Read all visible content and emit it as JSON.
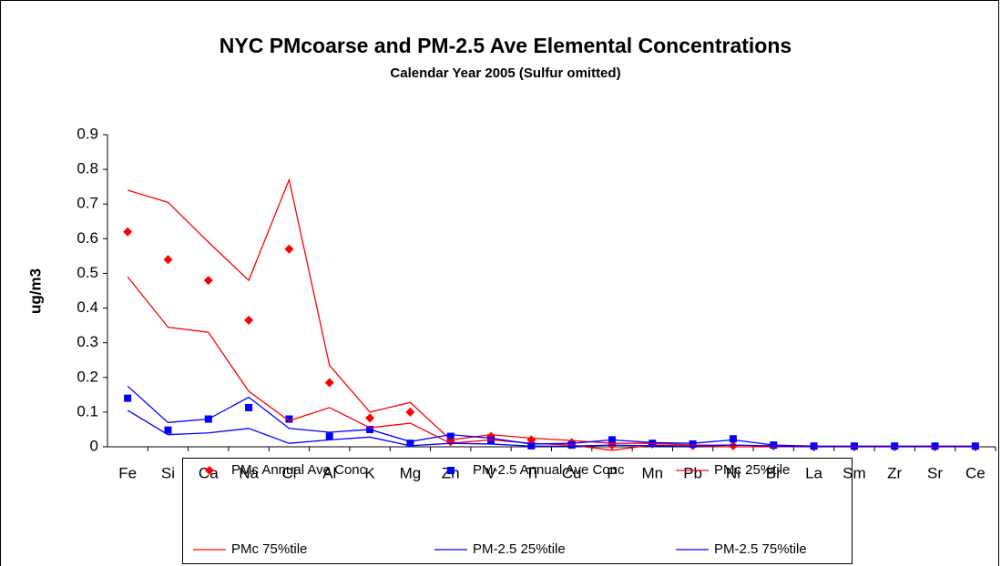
{
  "chart_data": {
    "type": "line",
    "title": "NYC PMcoarse and PM-2.5 Ave Elemental Concentrations",
    "subtitle": "Calendar Year 2005 (Sulfur omitted)",
    "y_label": "ug/m3",
    "categories": [
      "Fe",
      "Si",
      "Ca",
      "Na",
      "Cl",
      "Al",
      "K",
      "Mg",
      "Zn",
      "V",
      "Ti",
      "Cu",
      "P",
      "Mn",
      "Pb",
      "Ni",
      "Br",
      "La",
      "Sm",
      "Zr",
      "Sr",
      "Ce"
    ],
    "ylim": [
      0,
      0.9
    ],
    "yticks": [
      0,
      0.1,
      0.2,
      0.3,
      0.4,
      0.5,
      0.6,
      0.7,
      0.8,
      0.9
    ],
    "grid": false,
    "legend": "bottom",
    "series": [
      {
        "name": "PMc Annual Ave Conc",
        "color": "#ff0000",
        "marker": "diamond",
        "line": false,
        "values": [
          0.62,
          0.54,
          0.48,
          0.365,
          0.57,
          0.185,
          0.083,
          0.1,
          0.015,
          0.03,
          0.02,
          0.012,
          0.005,
          0.008,
          0.003,
          0.003,
          0.003,
          0,
          0,
          0,
          0,
          0
        ]
      },
      {
        "name": "PM-2.5 Annual Ave Conc",
        "color": "#0000ff",
        "marker": "square",
        "line": false,
        "values": [
          0.14,
          0.048,
          0.08,
          0.113,
          0.08,
          0.03,
          0.05,
          0.01,
          0.03,
          0.018,
          0.003,
          0.005,
          0.02,
          0.01,
          0.008,
          0.023,
          0.005,
          0.002,
          0.002,
          0.002,
          0.002,
          0.002
        ]
      },
      {
        "name": "PMc 25%tile",
        "color": "#ff0000",
        "marker": "none",
        "line": true,
        "values": [
          0.49,
          0.345,
          0.33,
          0.16,
          0.075,
          0.113,
          0.055,
          0.068,
          0.01,
          0.02,
          0.01,
          0.005,
          -0.01,
          0.005,
          0.002,
          0,
          0,
          0,
          0,
          0,
          0,
          0
        ]
      },
      {
        "name": "PMc 75%tile",
        "color": "#ff0000",
        "marker": "none",
        "line": true,
        "values": [
          0.74,
          0.705,
          0.59,
          0.48,
          0.77,
          0.235,
          0.1,
          0.128,
          0.02,
          0.035,
          0.025,
          0.018,
          0.01,
          0.01,
          0.005,
          0.005,
          0.003,
          0,
          0,
          0,
          0,
          0
        ]
      },
      {
        "name": "PM-2.5 25%tile",
        "color": "#0000ff",
        "marker": "none",
        "line": true,
        "values": [
          0.105,
          0.035,
          0.04,
          0.053,
          0.01,
          0.02,
          0.028,
          0.003,
          0.01,
          0.008,
          0.002,
          0.002,
          0.005,
          0.003,
          0.002,
          0.005,
          0.002,
          0.001,
          0.001,
          0.001,
          0.001,
          0.001
        ]
      },
      {
        "name": "PM-2.5 75%tile",
        "color": "#0000ff",
        "marker": "none",
        "line": true,
        "values": [
          0.175,
          0.07,
          0.08,
          0.143,
          0.053,
          0.042,
          0.05,
          0.015,
          0.035,
          0.025,
          0.008,
          0.01,
          0.02,
          0.012,
          0.01,
          0.02,
          0.005,
          0.002,
          0.002,
          0.002,
          0.002,
          0.002
        ]
      }
    ]
  }
}
